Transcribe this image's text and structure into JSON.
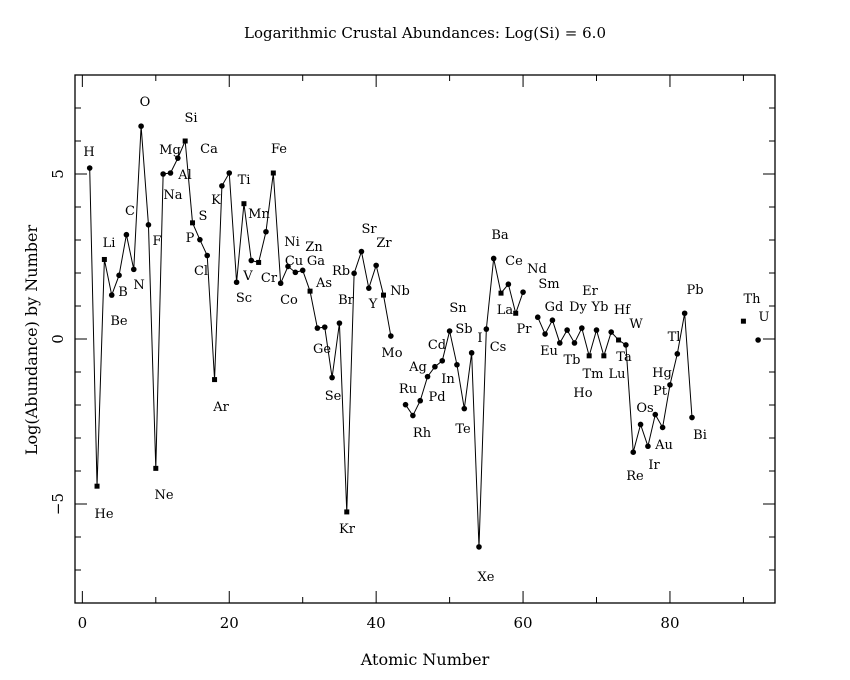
{
  "chart_data": {
    "type": "line",
    "title": "Logarithmic Crustal Abundances: Log(Si) = 6.0",
    "xlabel": "Atomic Number",
    "ylabel": "Log(Abundance) by Number",
    "xlim": [
      -1,
      94.3
    ],
    "ylim": [
      -8,
      8
    ],
    "x_ticks": [
      0,
      20,
      40,
      60,
      80
    ],
    "y_ticks": [
      -5,
      0,
      5
    ],
    "grid": false,
    "points": [
      {
        "z": 1,
        "el": "H",
        "y": 5.18
      },
      {
        "z": 2,
        "el": "He",
        "y": -4.46
      },
      {
        "z": 3,
        "el": "Li",
        "y": 2.41
      },
      {
        "z": 4,
        "el": "Be",
        "y": 1.33
      },
      {
        "z": 5,
        "el": "B",
        "y": 1.93
      },
      {
        "z": 6,
        "el": "C",
        "y": 3.16
      },
      {
        "z": 7,
        "el": "N",
        "y": 2.11
      },
      {
        "z": 8,
        "el": "O",
        "y": 6.45
      },
      {
        "z": 9,
        "el": "F",
        "y": 3.46
      },
      {
        "z": 10,
        "el": "Ne",
        "y": -3.92
      },
      {
        "z": 11,
        "el": "Na",
        "y": 5.0
      },
      {
        "z": 12,
        "el": "Mg",
        "y": 5.03
      },
      {
        "z": 13,
        "el": "Al",
        "y": 5.48
      },
      {
        "z": 14,
        "el": "Si",
        "y": 6.0
      },
      {
        "z": 15,
        "el": "P",
        "y": 3.52
      },
      {
        "z": 16,
        "el": "S",
        "y": 3.01
      },
      {
        "z": 17,
        "el": "Cl",
        "y": 2.53
      },
      {
        "z": 18,
        "el": "Ar",
        "y": -1.23
      },
      {
        "z": 19,
        "el": "K",
        "y": 4.64
      },
      {
        "z": 20,
        "el": "Ca",
        "y": 5.03
      },
      {
        "z": 21,
        "el": "Sc",
        "y": 1.72
      },
      {
        "z": 22,
        "el": "Ti",
        "y": 4.1
      },
      {
        "z": 23,
        "el": "V",
        "y": 2.38
      },
      {
        "z": 24,
        "el": "Cr",
        "y": 2.32
      },
      {
        "z": 25,
        "el": "Mn",
        "y": 3.25
      },
      {
        "z": 26,
        "el": "Fe",
        "y": 5.03
      },
      {
        "z": 27,
        "el": "Co",
        "y": 1.69
      },
      {
        "z": 28,
        "el": "Ni",
        "y": 2.2
      },
      {
        "z": 29,
        "el": "Cu",
        "y": 2.02
      },
      {
        "z": 30,
        "el": "Zn",
        "y": 2.08
      },
      {
        "z": 31,
        "el": "Ga",
        "y": 1.45
      },
      {
        "z": 32,
        "el": "Ge",
        "y": 0.33
      },
      {
        "z": 33,
        "el": "As",
        "y": 0.36
      },
      {
        "z": 34,
        "el": "Se",
        "y": -1.17
      },
      {
        "z": 35,
        "el": "Br",
        "y": 0.48
      },
      {
        "z": 36,
        "el": "Kr",
        "y": -5.24
      },
      {
        "z": 37,
        "el": "Rb",
        "y": 1.99
      },
      {
        "z": 38,
        "el": "Sr",
        "y": 2.65
      },
      {
        "z": 39,
        "el": "Y",
        "y": 1.54
      },
      {
        "z": 40,
        "el": "Zr",
        "y": 2.23
      },
      {
        "z": 41,
        "el": "Nb",
        "y": 1.33
      },
      {
        "z": 42,
        "el": "Mo",
        "y": 0.09
      },
      {
        "z": 44,
        "el": "Ru",
        "y": -1.99
      },
      {
        "z": 45,
        "el": "Rh",
        "y": -2.32
      },
      {
        "z": 46,
        "el": "Pd",
        "y": -1.87
      },
      {
        "z": 47,
        "el": "Ag",
        "y": -1.14
      },
      {
        "z": 48,
        "el": "Cd",
        "y": -0.84
      },
      {
        "z": 49,
        "el": "In",
        "y": -0.66
      },
      {
        "z": 50,
        "el": "Sn",
        "y": 0.24
      },
      {
        "z": 51,
        "el": "Sb",
        "y": -0.78
      },
      {
        "z": 52,
        "el": "Te",
        "y": -2.11
      },
      {
        "z": 53,
        "el": "I",
        "y": -0.42
      },
      {
        "z": 54,
        "el": "Xe",
        "y": -6.3
      },
      {
        "z": 55,
        "el": "Cs",
        "y": 0.3
      },
      {
        "z": 56,
        "el": "Ba",
        "y": 2.44
      },
      {
        "z": 57,
        "el": "La",
        "y": 1.39
      },
      {
        "z": 58,
        "el": "Ce",
        "y": 1.66
      },
      {
        "z": 59,
        "el": "Pr",
        "y": 0.78
      },
      {
        "z": 60,
        "el": "Nd",
        "y": 1.42
      },
      {
        "z": 62,
        "el": "Sm",
        "y": 0.66
      },
      {
        "z": 63,
        "el": "Eu",
        "y": 0.15
      },
      {
        "z": 64,
        "el": "Gd",
        "y": 0.57
      },
      {
        "z": 65,
        "el": "Tb",
        "y": -0.12
      },
      {
        "z": 66,
        "el": "Dy",
        "y": 0.27
      },
      {
        "z": 67,
        "el": "Ho",
        "y": -0.12
      },
      {
        "z": 68,
        "el": "Er",
        "y": 0.33
      },
      {
        "z": 69,
        "el": "Tm",
        "y": -0.51
      },
      {
        "z": 70,
        "el": "Yb",
        "y": 0.27
      },
      {
        "z": 71,
        "el": "Lu",
        "y": -0.51
      },
      {
        "z": 72,
        "el": "Hf",
        "y": 0.21
      },
      {
        "z": 73,
        "el": "Ta",
        "y": -0.03
      },
      {
        "z": 74,
        "el": "W",
        "y": -0.18
      },
      {
        "z": 75,
        "el": "Re",
        "y": -3.43
      },
      {
        "z": 76,
        "el": "Os",
        "y": -2.59
      },
      {
        "z": 77,
        "el": "Ir",
        "y": -3.25
      },
      {
        "z": 78,
        "el": "Pt",
        "y": -2.29
      },
      {
        "z": 79,
        "el": "Au",
        "y": -2.68
      },
      {
        "z": 80,
        "el": "Hg",
        "y": -1.39
      },
      {
        "z": 81,
        "el": "Tl",
        "y": -0.45
      },
      {
        "z": 82,
        "el": "Pb",
        "y": 0.78
      },
      {
        "z": 83,
        "el": "Bi",
        "y": -2.38
      },
      {
        "z": 90,
        "el": "Th",
        "y": 0.54
      },
      {
        "z": 92,
        "el": "U",
        "y": -0.03
      }
    ],
    "colors": {
      "line": "#000000",
      "background": "#ffffff"
    }
  }
}
